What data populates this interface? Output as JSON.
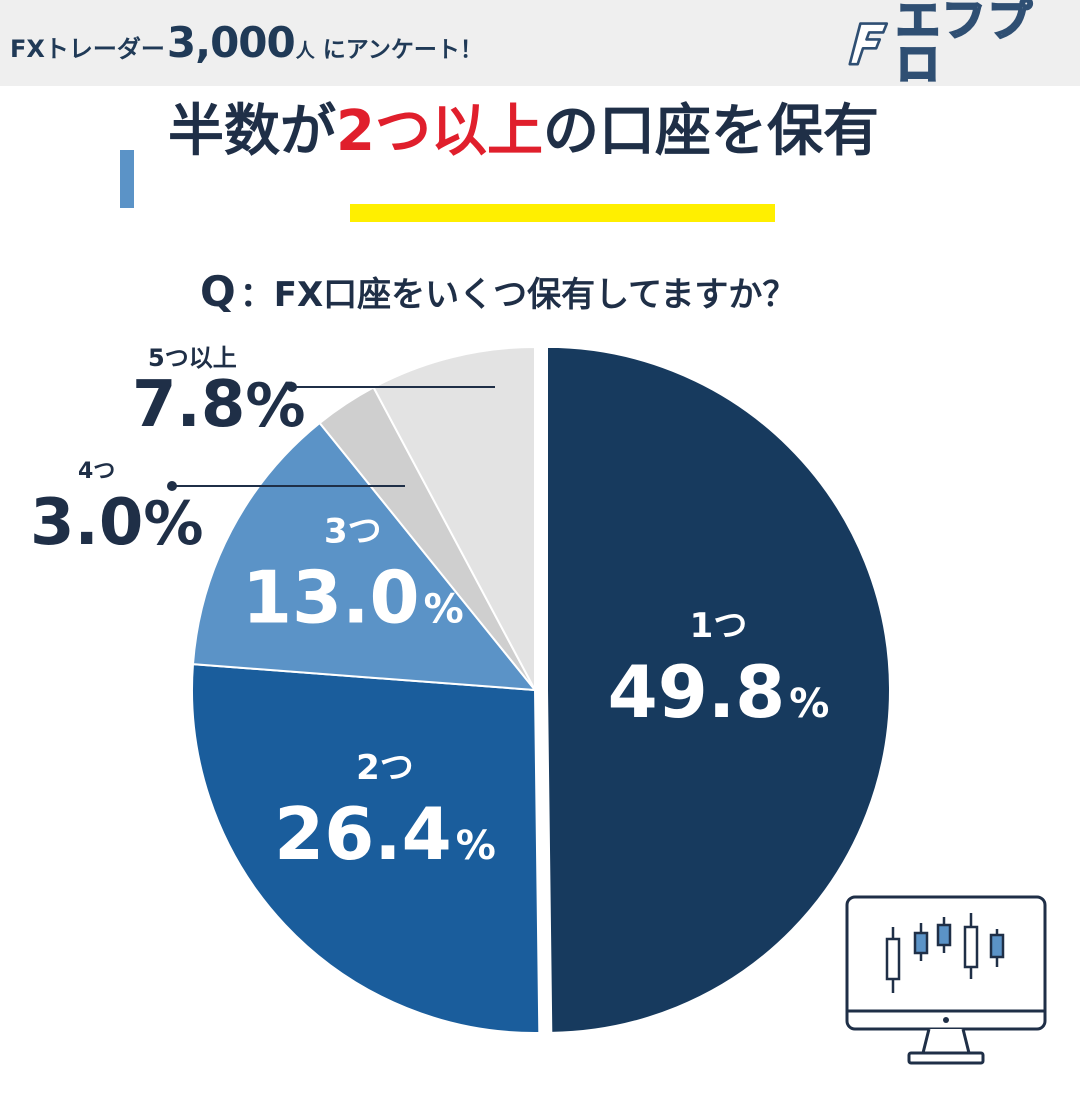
{
  "header": {
    "survey_prefix": "FXトレーダー",
    "survey_count": "3,000",
    "survey_unit": "人",
    "survey_suffix": "にアンケート！",
    "logo_text": "エフプロ"
  },
  "headline": {
    "part1": "半数が",
    "highlight": "2つ以上",
    "part2": "の口座を保有"
  },
  "question": {
    "prefix": "Q",
    "text": "：FX口座をいくつ保有してますか？"
  },
  "colors": {
    "navy": "#173a5e",
    "blue": "#1a5d9c",
    "light_blue": "#5b93c7",
    "gray": "#cfcfcf",
    "light_gray": "#e3e3e3",
    "headline_red": "#e01f2c",
    "underline_yellow": "#ffef00"
  },
  "icons": [
    "logo-icon",
    "candlestick-monitor-icon"
  ],
  "chart_data": {
    "type": "pie",
    "title": "FX口座をいくつ保有してますか？",
    "categories": [
      "1つ",
      "2つ",
      "3つ",
      "4つ",
      "5つ以上"
    ],
    "values": [
      49.8,
      26.4,
      13.0,
      3.0,
      7.8
    ],
    "unit": "%",
    "labels": [
      {
        "name": "1つ",
        "value": "49.8",
        "unit": "%"
      },
      {
        "name": "2つ",
        "value": "26.4",
        "unit": "%"
      },
      {
        "name": "3つ",
        "value": "13.0",
        "unit": "%"
      },
      {
        "name": "4つ",
        "value": "3.0",
        "unit": "%"
      },
      {
        "name": "5つ以上",
        "value": "7.8",
        "unit": "%"
      }
    ],
    "colors": [
      "#173a5e",
      "#1a5d9c",
      "#5b93c7",
      "#cfcfcf",
      "#e3e3e3"
    ],
    "exploded": "1つ",
    "legend": "none"
  }
}
